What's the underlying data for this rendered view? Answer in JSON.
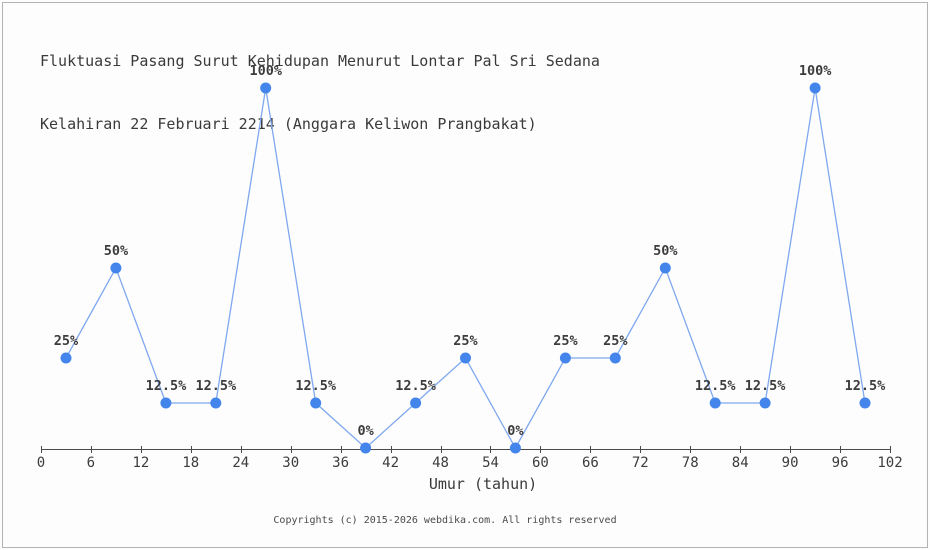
{
  "title": {
    "line1": "Fluktuasi Pasang Surut Kehidupan Menurut Lontar Pal Sri Sedana",
    "line2": "Kelahiran 22 Februari 2214 (Anggara Keliwon Prangbakat)"
  },
  "footer": {
    "copyright": "Copyrights (c) 2015-2026 webdika.com. All rights reserved"
  },
  "chart_data": {
    "type": "line",
    "title": "Fluktuasi Pasang Surut Kehidupan Menurut Lontar Pal Sri Sedana Kelahiran 22 Februari 2214 (Anggara Keliwon Prangbakat)",
    "title_lines": [
      "Fluktuasi Pasang Surut Kehidupan Menurut Lontar Pal Sri Sedana",
      "Kelahiran 22 Februari 2214 (Anggara Keliwon Prangbakat)"
    ],
    "xlabel": "Umur (tahun)",
    "ylabel": "",
    "x": [
      3,
      9,
      15,
      21,
      27,
      33,
      39,
      45,
      51,
      57,
      63,
      69,
      75,
      81,
      87,
      93,
      99
    ],
    "values": [
      25,
      50,
      12.5,
      12.5,
      100,
      12.5,
      0,
      12.5,
      25,
      0,
      25,
      25,
      50,
      12.5,
      12.5,
      100,
      12.5
    ],
    "point_labels": [
      "25%",
      "50%",
      "12.5%",
      "12.5%",
      "100%",
      "12.5%",
      "0%",
      "12.5%",
      "25%",
      "0%",
      "25%",
      "25%",
      "50%",
      "12.5%",
      "12.5%",
      "100%",
      "12.5%"
    ],
    "x_ticks": [
      0,
      6,
      12,
      18,
      24,
      30,
      36,
      42,
      48,
      54,
      60,
      66,
      72,
      78,
      84,
      90,
      96,
      102
    ],
    "xlim": [
      0,
      102
    ],
    "ylim": [
      0,
      100
    ],
    "grid": false,
    "legend": false,
    "colors": {
      "line": "#7fa8ef",
      "marker": "#4485ec",
      "axis": "#4a4a4a",
      "text": "#3c3c3c",
      "border": "#b3b3b3",
      "background": "#fdfdfd"
    }
  }
}
